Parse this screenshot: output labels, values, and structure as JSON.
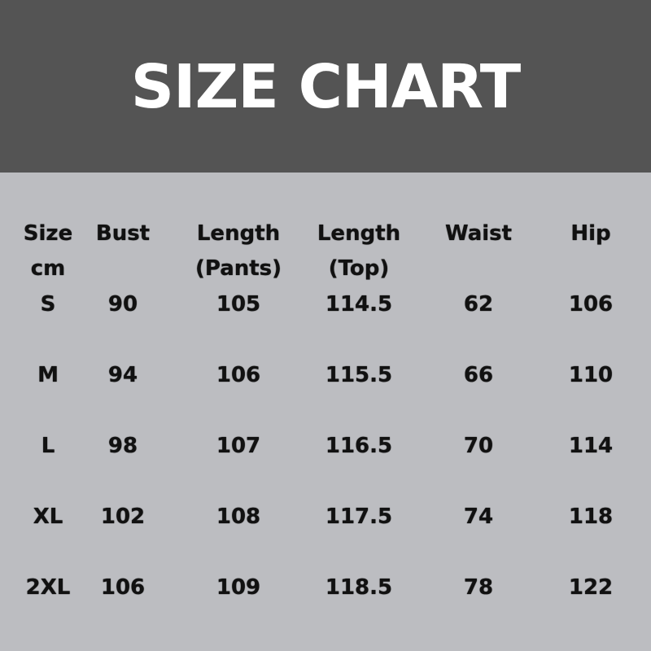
{
  "title": "SIZE CHART",
  "colors": {
    "header_bg": "#545454",
    "body_bg": "#bcbdc1",
    "title": "#ffffff",
    "text": "#111111"
  },
  "columns": [
    {
      "line1": "Size",
      "line2": "cm"
    },
    {
      "line1": "Bust",
      "line2": ""
    },
    {
      "line1": "Length",
      "line2": "(Pants)"
    },
    {
      "line1": "Length",
      "line2": "(Top)"
    },
    {
      "line1": "Waist",
      "line2": ""
    },
    {
      "line1": "Hip",
      "line2": ""
    }
  ],
  "rows": [
    [
      "S",
      "90",
      "105",
      "114.5",
      "62",
      "106"
    ],
    [
      "M",
      "94",
      "106",
      "115.5",
      "66",
      "110"
    ],
    [
      "L",
      "98",
      "107",
      "116.5",
      "70",
      "114"
    ],
    [
      "XL",
      "102",
      "108",
      "117.5",
      "74",
      "118"
    ],
    [
      "2XL",
      "106",
      "109",
      "118.5",
      "78",
      "122"
    ]
  ]
}
